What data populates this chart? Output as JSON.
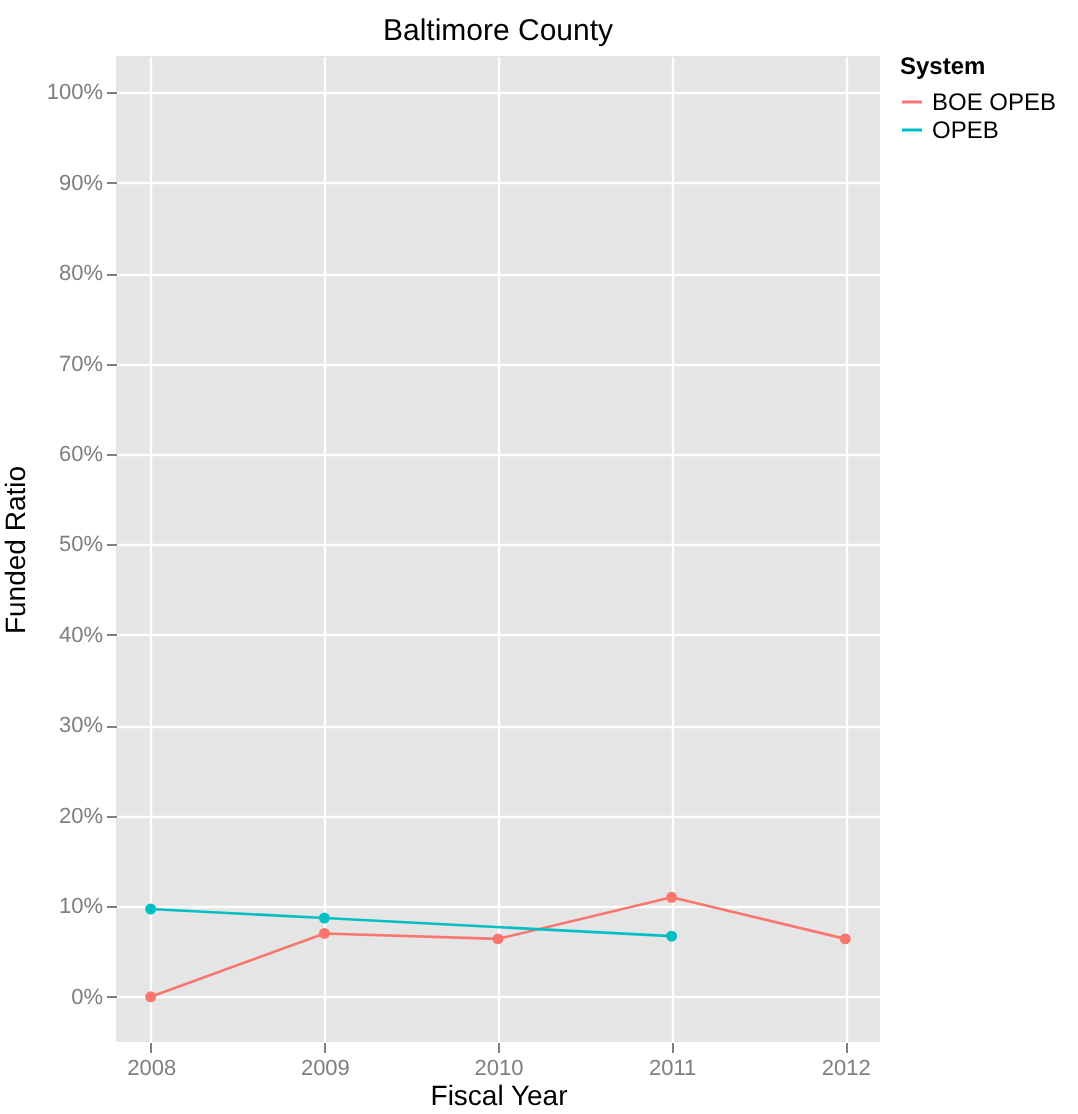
{
  "chart_data": {
    "type": "line",
    "title": "Baltimore County",
    "xlabel": "Fiscal Year",
    "ylabel": "Funded Ratio",
    "legend_title": "System",
    "x": [
      2008,
      2009,
      2010,
      2011,
      2012
    ],
    "series": [
      {
        "name": "BOE OPEB",
        "color": "#f8766d",
        "values": [
          0,
          7.0,
          6.4,
          11.0,
          6.4
        ]
      },
      {
        "name": "OPEB",
        "color": "#00bfc4",
        "values": [
          9.7,
          8.7,
          null,
          6.7,
          null
        ]
      }
    ],
    "xlim": [
      2007.8,
      2012.2
    ],
    "xticks": [
      2008,
      2009,
      2010,
      2011,
      2012
    ],
    "ylim": [
      -5,
      104
    ],
    "yticks": [
      {
        "value": 0,
        "label": "0%"
      },
      {
        "value": 10,
        "label": "10%"
      },
      {
        "value": 20,
        "label": "20%"
      },
      {
        "value": 30,
        "label": "30%"
      },
      {
        "value": 40,
        "label": "40%"
      },
      {
        "value": 50,
        "label": "50%"
      },
      {
        "value": 60,
        "label": "60%"
      },
      {
        "value": 70,
        "label": "70%"
      },
      {
        "value": 80,
        "label": "80%"
      },
      {
        "value": 90,
        "label": "90%"
      },
      {
        "value": 100,
        "label": "100%"
      }
    ],
    "grid": true,
    "legend": "right",
    "marker": "circle",
    "line_style": "solid"
  }
}
